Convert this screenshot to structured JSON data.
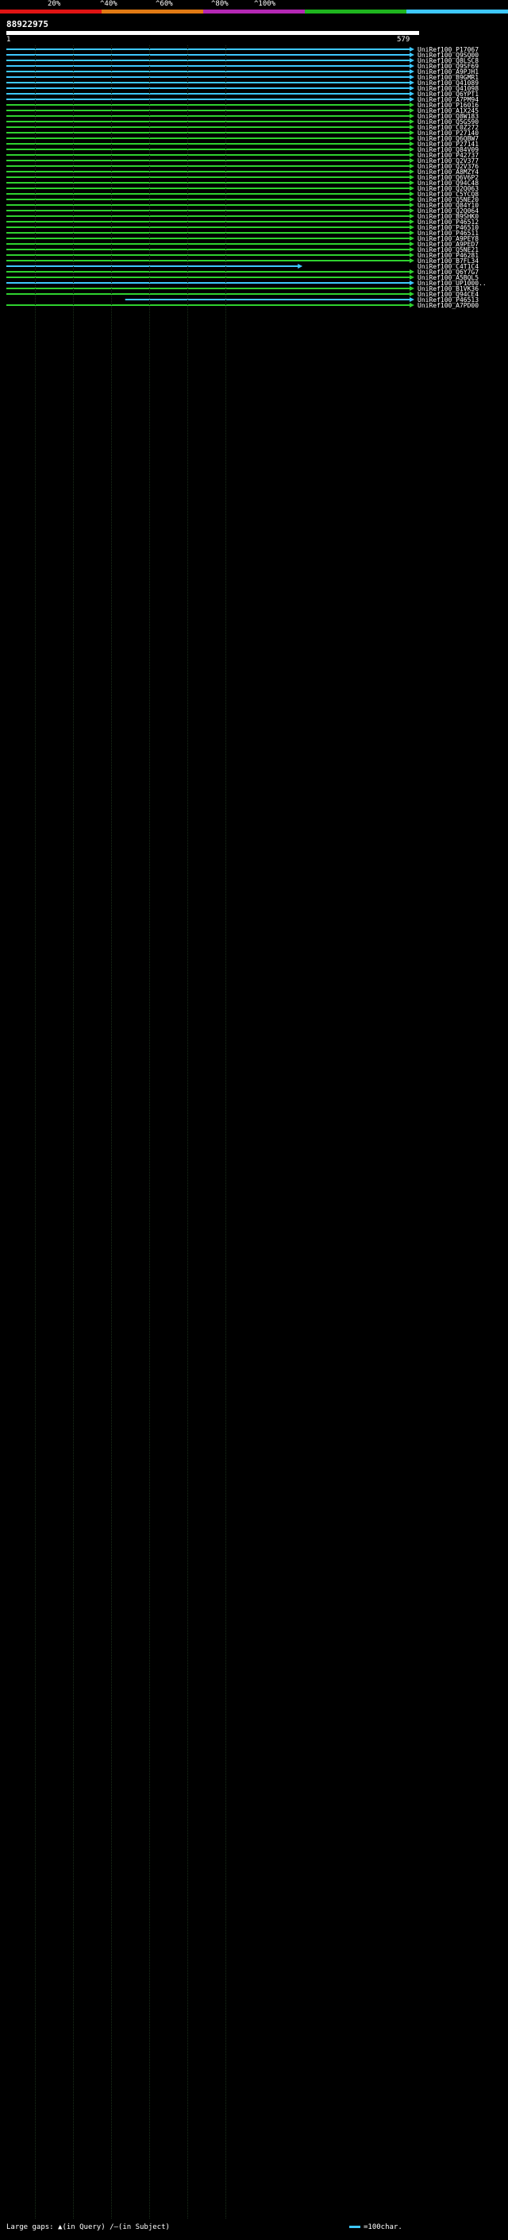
{
  "legend": {
    "percent_labels": [
      "20%",
      "^40%",
      "^60%",
      "^80%",
      "^100%"
    ],
    "colors": [
      "#e01414",
      "#e07a14",
      "#b428b4",
      "#1eb41e",
      "#3ec8ff"
    ]
  },
  "query": {
    "id": "88922975",
    "start": "1",
    "end": "579",
    "length": 579
  },
  "hits_sample_note_removed": true,
  "hits": [
    {
      "label": "UniRef100_P17067",
      "q": [
        1,
        579
      ],
      "c": "cyan"
    },
    {
      "label": "UniRef100_Q9SQ00",
      "q": [
        1,
        579
      ],
      "c": "cyan"
    },
    {
      "label": "UniRef100_Q8LSC8",
      "q": [
        1,
        579
      ],
      "c": "cyan"
    },
    {
      "label": "UniRef100_Q9SF69",
      "q": [
        1,
        579
      ],
      "c": "cyan"
    },
    {
      "label": "UniRef100_A9PJH1",
      "q": [
        1,
        579
      ],
      "c": "cyan"
    },
    {
      "label": "UniRef100_B9GMR1",
      "q": [
        1,
        579
      ],
      "c": "cyan"
    },
    {
      "label": "UniRef100_Q41089",
      "q": [
        1,
        579
      ],
      "c": "cyan"
    },
    {
      "label": "UniRef100_Q41098",
      "q": [
        1,
        579
      ],
      "c": "cyan"
    },
    {
      "label": "UniRef100_Q6YPT1",
      "q": [
        1,
        579
      ],
      "c": "cyan"
    },
    {
      "label": "UniRef100_A7PM94",
      "q": [
        1,
        579
      ],
      "c": "cyan"
    },
    {
      "label": "UniRef100_P16016",
      "q": [
        1,
        579
      ],
      "c": "green"
    },
    {
      "label": "UniRef100_A1X245",
      "q": [
        1,
        579
      ],
      "c": "green"
    },
    {
      "label": "UniRef100_Q8W183",
      "q": [
        1,
        579
      ],
      "c": "green"
    },
    {
      "label": "UniRef100_Q5G590",
      "q": [
        1,
        579
      ],
      "c": "green"
    },
    {
      "label": "UniRef100_C0Z272",
      "q": [
        1,
        579
      ],
      "c": "green"
    },
    {
      "label": "UniRef100_P27140",
      "q": [
        1,
        579
      ],
      "c": "green"
    },
    {
      "label": "UniRef100_Q6QBW7",
      "q": [
        1,
        579
      ],
      "c": "green"
    },
    {
      "label": "UniRef100_P27141",
      "q": [
        1,
        579
      ],
      "c": "green"
    },
    {
      "label": "UniRef100_Q84V09",
      "q": [
        1,
        579
      ],
      "c": "green"
    },
    {
      "label": "UniRef100_P42737",
      "q": [
        1,
        579
      ],
      "c": "green"
    },
    {
      "label": "UniRef100_Q2V377",
      "q": [
        1,
        579
      ],
      "c": "green"
    },
    {
      "label": "UniRef100_Q2V376",
      "q": [
        1,
        579
      ],
      "c": "green"
    },
    {
      "label": "UniRef100_A8MZY4",
      "q": [
        1,
        579
      ],
      "c": "green"
    },
    {
      "label": "UniRef100_Q6V6P2",
      "q": [
        1,
        579
      ],
      "c": "green"
    },
    {
      "label": "UniRef100_Q94C48",
      "q": [
        1,
        579
      ],
      "c": "green"
    },
    {
      "label": "UniRef100_Q2Q063",
      "q": [
        1,
        579
      ],
      "c": "green"
    },
    {
      "label": "UniRef100_C5YCQ8",
      "q": [
        1,
        579
      ],
      "c": "green"
    },
    {
      "label": "UniRef100_Q5NE20",
      "q": [
        1,
        579
      ],
      "c": "green"
    },
    {
      "label": "UniRef100_Q84Y10",
      "q": [
        1,
        579
      ],
      "c": "green"
    },
    {
      "label": "UniRef100_Q2Q064",
      "q": [
        1,
        579
      ],
      "c": "green"
    },
    {
      "label": "UniRef100_B9SHK0",
      "q": [
        1,
        579
      ],
      "c": "green"
    },
    {
      "label": "UniRef100_P46512",
      "q": [
        1,
        579
      ],
      "c": "green"
    },
    {
      "label": "UniRef100_P46510",
      "q": [
        1,
        579
      ],
      "c": "green"
    },
    {
      "label": "UniRef100_P46511",
      "q": [
        1,
        579
      ],
      "c": "green"
    },
    {
      "label": "UniRef100_A9PEY8",
      "q": [
        1,
        579
      ],
      "c": "green"
    },
    {
      "label": "UniRef100_A9PED7",
      "q": [
        1,
        579
      ],
      "c": "green"
    },
    {
      "label": "UniRef100_Q5NE21",
      "q": [
        1,
        579
      ],
      "c": "green"
    },
    {
      "label": "UniRef100_P46281",
      "q": [
        1,
        579
      ],
      "c": "green"
    },
    {
      "label": "UniRef100_B7FL34",
      "q": [
        1,
        579
      ],
      "c": "green"
    },
    {
      "label": "UniRef100_C4T1C4",
      "q": [
        1,
        420
      ],
      "c": "cyan"
    },
    {
      "label": "UniRef100_Q6Y7G7",
      "q": [
        1,
        579
      ],
      "c": "green"
    },
    {
      "label": "UniRef100_A5BQL5",
      "q": [
        1,
        579
      ],
      "c": "green"
    },
    {
      "label": "UniRef100_UP1000..",
      "q": [
        1,
        579
      ],
      "c": "cyan"
    },
    {
      "label": "UniRef100_B1VK36",
      "q": [
        1,
        579
      ],
      "c": "green"
    },
    {
      "label": "UniRef100_Q94CE4",
      "q": [
        1,
        579
      ],
      "c": "green"
    },
    {
      "label": "UniRef100_P46513",
      "q": [
        170,
        579
      ],
      "c": "cyan"
    },
    {
      "label": "UniRef100_A7PD00",
      "q": [
        1,
        579
      ],
      "c": "green"
    }
  ],
  "footer": {
    "large_gaps_label": "Large gaps:",
    "in_query": "▲(in Query)",
    "in_subject": "/—(in Subject)",
    "scale_label": "=100char."
  }
}
